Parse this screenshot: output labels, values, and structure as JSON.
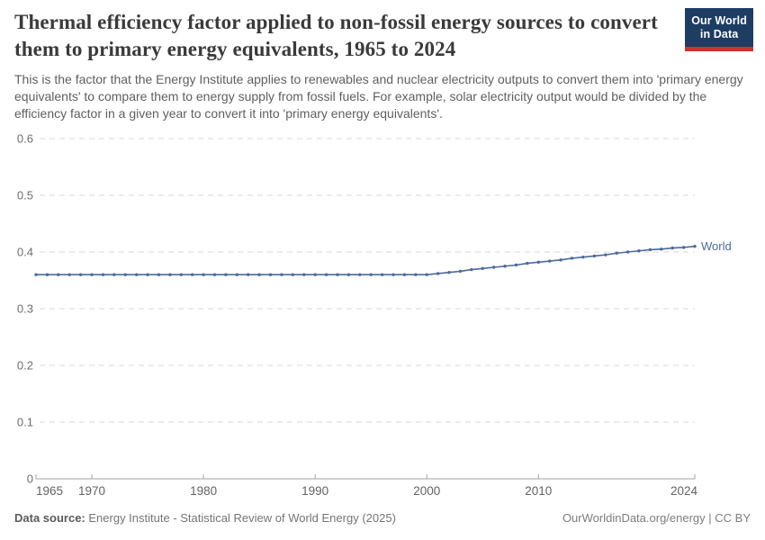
{
  "header": {
    "title": "Thermal efficiency factor applied to non-fossil energy sources to convert them to primary energy equivalents, 1965 to 2024",
    "subtitle": "This is the factor that the Energy Institute applies to renewables and nuclear electricity outputs to convert them into 'primary energy equivalents' to compare them to energy supply from fossil fuels. For example, solar electricity output would be divided by the efficiency factor in a given year to convert it into 'primary energy equivalents'.",
    "logo": {
      "line1": "Our World",
      "line2": "in Data",
      "bg_color": "#1d3d63",
      "accent_color": "#c6362c"
    }
  },
  "footer": {
    "datasource_label": "Data source:",
    "datasource_value": "Energy Institute - Statistical Review of World Energy (2025)",
    "license": "OurWorldinData.org/energy | CC BY"
  },
  "chart_data": {
    "type": "line",
    "title": "Thermal efficiency factor applied to non-fossil energy sources to convert them to primary energy equivalents, 1965 to 2024",
    "xlabel": "",
    "ylabel": "",
    "xlim": [
      1965,
      2024
    ],
    "ylim": [
      0,
      0.6
    ],
    "xticks": [
      1965,
      1970,
      1980,
      1990,
      2000,
      2010,
      2024
    ],
    "yticks": [
      0,
      0.1,
      0.2,
      0.3,
      0.4,
      0.5,
      0.6
    ],
    "grid": "horizontal-dashed",
    "legend_position": "line-end-label",
    "colors": {
      "grid": "#dadada",
      "axis": "#a3a3a3",
      "x_tick_label": "#636363",
      "y_tick_label": "#6e6e6e"
    },
    "series": [
      {
        "name": "World",
        "color": "#4C6A9C",
        "x": [
          1965,
          1966,
          1967,
          1968,
          1969,
          1970,
          1971,
          1972,
          1973,
          1974,
          1975,
          1976,
          1977,
          1978,
          1979,
          1980,
          1981,
          1982,
          1983,
          1984,
          1985,
          1986,
          1987,
          1988,
          1989,
          1990,
          1991,
          1992,
          1993,
          1994,
          1995,
          1996,
          1997,
          1998,
          1999,
          2000,
          2001,
          2002,
          2003,
          2004,
          2005,
          2006,
          2007,
          2008,
          2009,
          2010,
          2011,
          2012,
          2013,
          2014,
          2015,
          2016,
          2017,
          2018,
          2019,
          2020,
          2021,
          2022,
          2023,
          2024
        ],
        "y": [
          0.36,
          0.36,
          0.36,
          0.36,
          0.36,
          0.36,
          0.36,
          0.36,
          0.36,
          0.36,
          0.36,
          0.36,
          0.36,
          0.36,
          0.36,
          0.36,
          0.36,
          0.36,
          0.36,
          0.36,
          0.36,
          0.36,
          0.36,
          0.36,
          0.36,
          0.36,
          0.36,
          0.36,
          0.36,
          0.36,
          0.36,
          0.36,
          0.36,
          0.36,
          0.36,
          0.36,
          0.362,
          0.364,
          0.366,
          0.369,
          0.371,
          0.373,
          0.375,
          0.377,
          0.38,
          0.382,
          0.384,
          0.386,
          0.389,
          0.391,
          0.393,
          0.395,
          0.398,
          0.4,
          0.402,
          0.404,
          0.405,
          0.407,
          0.408,
          0.41
        ]
      }
    ]
  }
}
